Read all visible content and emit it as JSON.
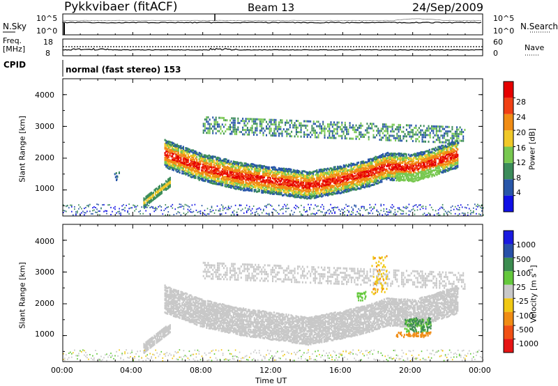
{
  "header": {
    "station": "Pykkvibaer (fitACF)",
    "beam": "Beam 13",
    "date": "24/Sep/2009"
  },
  "strips": {
    "noise_left_label": "N.Sky",
    "noise_right_label": "N.Search",
    "noise_left_ticks": [
      "10^5",
      "10^0"
    ],
    "noise_right_ticks": [
      "10^5",
      "10^0"
    ],
    "freq_left_label_1": "Freq.",
    "freq_left_label_2": "[MHz]",
    "freq_left_ticks": [
      "18",
      "8"
    ],
    "freq_right_label": "Nave",
    "freq_right_ticks": [
      "60",
      "0"
    ],
    "cpid_label": "CPID",
    "cpid_value": "normal (fast stereo) 153"
  },
  "chart_data": [
    {
      "type": "heatmap",
      "title": "",
      "xlabel": "",
      "ylabel": "Slant Range [km]",
      "x_range_hours": [
        0,
        24
      ],
      "y_range_km": [
        180,
        4500
      ],
      "y_ticks": [
        "1000",
        "2000",
        "3000",
        "4000"
      ],
      "colorbar_label": "Power [dB]",
      "colorbar_ticks": [
        "4",
        "8",
        "12",
        "16",
        "20",
        "24",
        "28"
      ],
      "colorbar_colors": [
        "#1010e6",
        "#2856a8",
        "#3c8c5a",
        "#78c850",
        "#f0c828",
        "#f08c14",
        "#f04014",
        "#e60000"
      ],
      "features": [
        {
          "name": "main echo band",
          "start_h": 5.8,
          "end_h": 22.6,
          "center_km": [
            2100,
            1650,
            1300,
            1150,
            1500,
            1900,
            2100
          ],
          "level": "high"
        },
        {
          "name": "upper band",
          "start_h": 8.0,
          "end_h": 23.0,
          "center_km": [
            3000,
            2900,
            2800,
            2700
          ],
          "level": "low"
        },
        {
          "name": "early patch",
          "start_h": 4.5,
          "end_h": 6.0,
          "center_km": [
            700,
            1200
          ],
          "level": "mid"
        },
        {
          "name": "ground scatter floor",
          "start_h": 0,
          "end_h": 24,
          "center_km": [
            250
          ],
          "level": "low"
        }
      ]
    },
    {
      "type": "heatmap",
      "title": "",
      "xlabel": "Time UT",
      "ylabel": "Slant Range [km]",
      "x_range_hours": [
        0,
        24
      ],
      "x_ticks": [
        "00:00",
        "04:00",
        "08:00",
        "12:00",
        "16:00",
        "20:00",
        "00:00"
      ],
      "y_range_km": [
        180,
        4500
      ],
      "y_ticks": [
        "1000",
        "2000",
        "3000",
        "4000"
      ],
      "colorbar_label": "Velocity [m s",
      "colorbar_unit_exp": "-1",
      "colorbar_ticks": [
        "1000",
        "500",
        "100",
        "25",
        "-25",
        "-100",
        "-500",
        "-1000"
      ],
      "colorbar_colors": [
        "#1a1ae0",
        "#2850a8",
        "#3c8c50",
        "#64c83c",
        "#c8c8c8",
        "#f0c814",
        "#f08c14",
        "#f05014",
        "#e61414"
      ],
      "features": [
        {
          "name": "ground scatter band",
          "start_h": 5.8,
          "end_h": 22.6,
          "velocity": "near zero"
        },
        {
          "name": "positive velocity patch",
          "start_h": 19.5,
          "end_h": 21.0,
          "center_km": 1300,
          "velocity": "100"
        },
        {
          "name": "negative velocity streak",
          "start_h": 17.5,
          "end_h": 18.5,
          "center_km": 2700,
          "velocity": "-100"
        }
      ]
    }
  ]
}
